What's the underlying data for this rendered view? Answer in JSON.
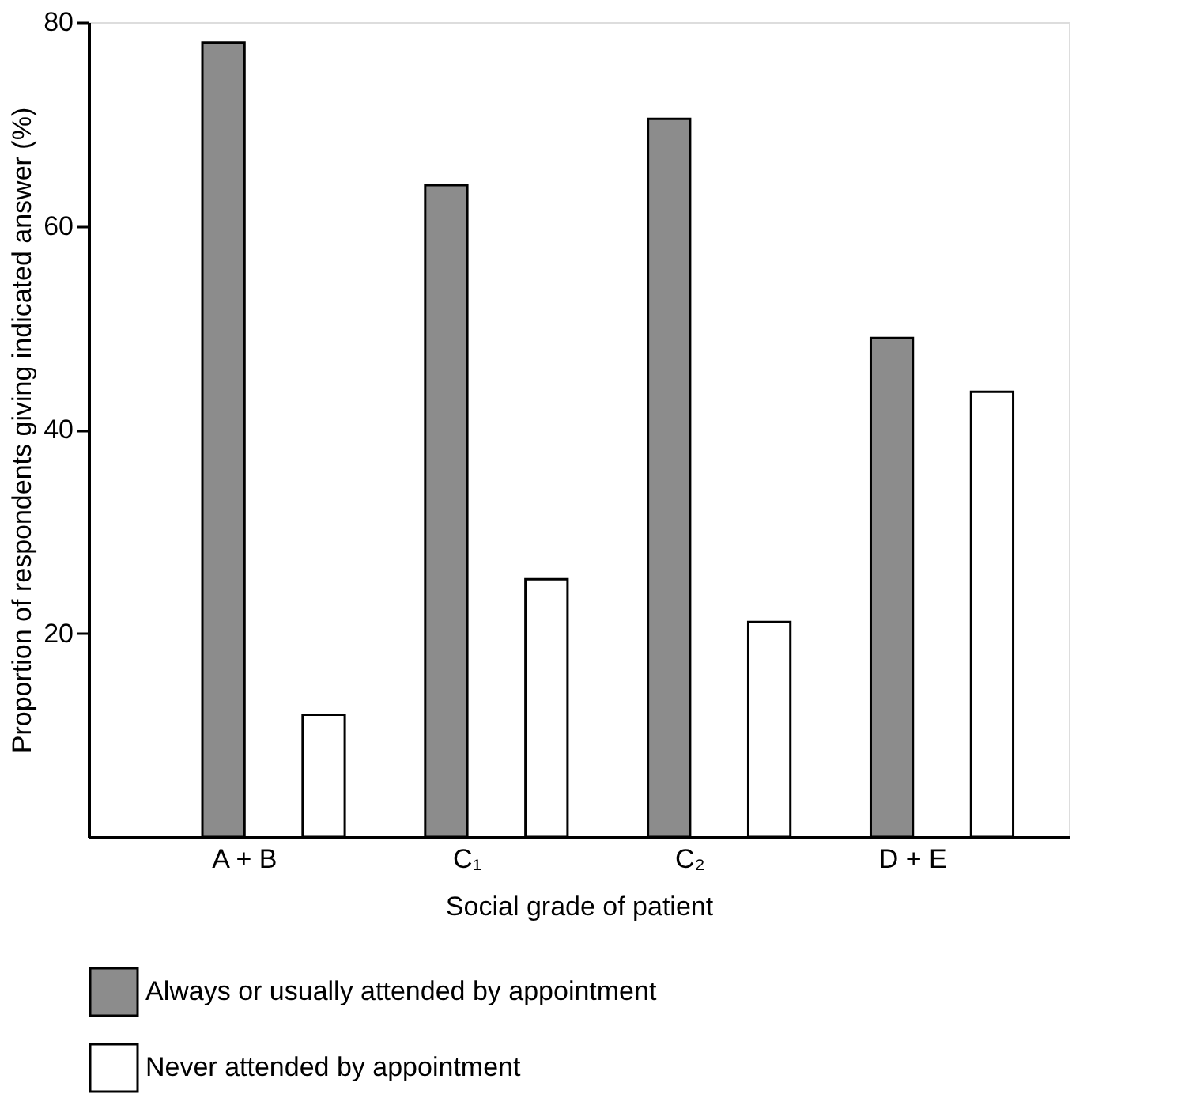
{
  "chart_data": {
    "type": "bar",
    "xlabel": "Social grade of patient",
    "ylabel": "Proportion of respondents giving indicated answer (%)",
    "categories": [
      "A + B",
      "C₁",
      "C₂",
      "D + E"
    ],
    "series": [
      {
        "name": "Always or usually attended by appointment",
        "color": "#8c8c8c",
        "values": [
          78,
          64,
          70.5,
          49
        ]
      },
      {
        "name": "Never attended by appointment",
        "color": "#ffffff",
        "values": [
          12,
          25.3,
          21.1,
          43.7
        ]
      }
    ],
    "ylim": [
      0,
      80
    ],
    "yticks": [
      20,
      40,
      60,
      80
    ],
    "grid": false,
    "legend": "bottom"
  }
}
